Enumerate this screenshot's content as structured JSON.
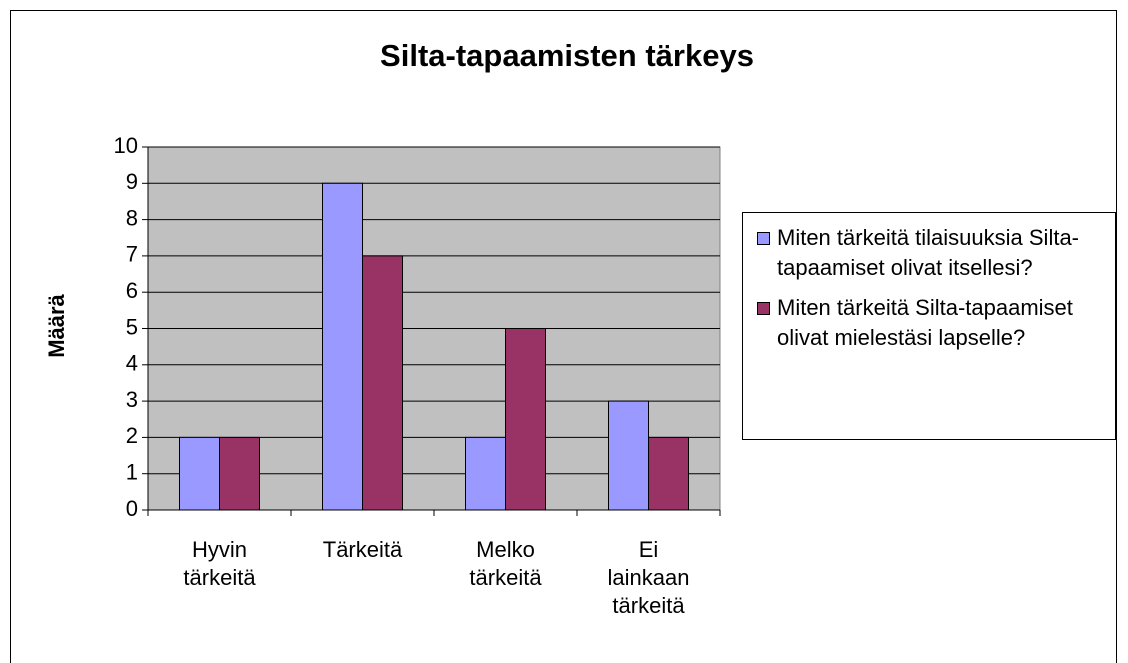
{
  "chart_data": {
    "type": "bar",
    "title": "Silta-tapaamisten tärkeys",
    "ylabel": "Määrä",
    "categories": [
      "Hyvin tärkeitä",
      "Tärkeitä",
      "Melko tärkeitä",
      "Ei lainkaan tärkeitä"
    ],
    "series": [
      {
        "name": "Miten tärkeitä tilaisuuksia Silta-tapaamiset olivat itsellesi?",
        "color": "#9999ff",
        "values": [
          2,
          9,
          2,
          3
        ]
      },
      {
        "name": "Miten tärkeitä Silta-tapaamiset olivat mielestäsi lapselle?",
        "color": "#993366",
        "values": [
          2,
          7,
          5,
          2
        ]
      }
    ],
    "ylim": [
      0,
      10
    ],
    "yticks": [
      0,
      1,
      2,
      3,
      4,
      5,
      6,
      7,
      8,
      9,
      10
    ],
    "grid": true,
    "legend": "right"
  }
}
